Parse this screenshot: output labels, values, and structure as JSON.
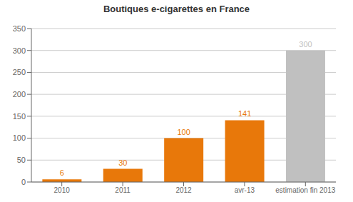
{
  "chart_data": {
    "type": "bar",
    "title": "Boutiques e-cigarettes en France",
    "categories": [
      "2010",
      "2011",
      "2012",
      "avr-13",
      "estimation fin 2013"
    ],
    "values": [
      6,
      30,
      100,
      141,
      300
    ],
    "colors": [
      "#E8780A",
      "#E8780A",
      "#E8780A",
      "#E8780A",
      "#C0C0C0"
    ],
    "ylim": [
      0,
      350
    ],
    "yticks": [
      0,
      50,
      100,
      150,
      200,
      250,
      300,
      350
    ],
    "grid": true,
    "data_labels": true
  }
}
